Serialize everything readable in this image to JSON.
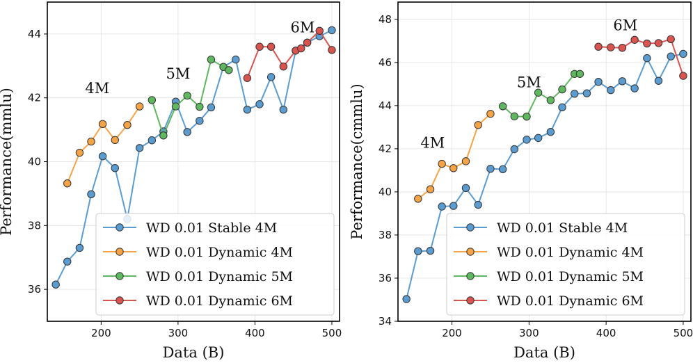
{
  "colors": {
    "stable4m": "#5a9bd0",
    "dyn4m": "#f5a347",
    "dyn5m": "#5fb85f",
    "dyn6m": "#d9534f"
  },
  "chart_data": [
    {
      "type": "line",
      "xlabel": "Data (B)",
      "ylabel": "Performance(mmlu)",
      "xlim": [
        130,
        510
      ],
      "ylim": [
        35.0,
        45.0
      ],
      "xticks": [
        200,
        300,
        400,
        500
      ],
      "yticks": [
        36,
        38,
        40,
        42,
        44
      ],
      "grid": true,
      "legend_position": "lower-right",
      "annotations": [
        {
          "text": "4M",
          "x": 195,
          "y": 42.15
        },
        {
          "text": "5M",
          "x": 300,
          "y": 42.6
        },
        {
          "text": "6M",
          "x": 462,
          "y": 44.05
        }
      ],
      "series": [
        {
          "name": "WD 0.01 Stable 4M",
          "color_key": "stable4m",
          "x": [
            141,
            156,
            172,
            187,
            202,
            218,
            234,
            250,
            266,
            281,
            297,
            312,
            328,
            343,
            359,
            375,
            390,
            406,
            421,
            437,
            453,
            468,
            484,
            500
          ],
          "y": [
            36.15,
            36.87,
            37.3,
            38.98,
            40.17,
            39.8,
            38.2,
            40.43,
            40.67,
            40.95,
            41.88,
            40.93,
            41.28,
            41.7,
            42.97,
            43.2,
            41.63,
            41.8,
            42.65,
            41.63,
            43.48,
            43.73,
            43.93,
            44.12
          ]
        },
        {
          "name": "WD 0.01 Dynamic 4M",
          "color_key": "dyn4m",
          "x": [
            156,
            172,
            187,
            202,
            218,
            234,
            250
          ],
          "y": [
            39.32,
            40.28,
            40.63,
            41.18,
            40.68,
            41.15,
            41.73
          ]
        },
        {
          "name": "WD 0.01 Dynamic 5M",
          "color_key": "dyn5m",
          "x": [
            266,
            281,
            297,
            312,
            328,
            343,
            359,
            366
          ],
          "y": [
            41.93,
            40.82,
            41.73,
            42.07,
            41.72,
            43.2,
            42.97,
            42.87
          ]
        },
        {
          "name": "WD 0.01 Dynamic 6M",
          "color_key": "dyn6m",
          "x": [
            390,
            406,
            421,
            437,
            453,
            460,
            468,
            484,
            500
          ],
          "y": [
            42.62,
            43.6,
            43.6,
            42.98,
            43.48,
            43.55,
            43.73,
            44.1,
            43.5
          ]
        }
      ]
    },
    {
      "type": "line",
      "xlabel": "Data (B)",
      "ylabel": "Performance(cmmlu)",
      "xlim": [
        130,
        510
      ],
      "ylim": [
        34.0,
        48.8
      ],
      "xticks": [
        200,
        300,
        400,
        500
      ],
      "yticks": [
        34,
        36,
        38,
        40,
        42,
        44,
        46,
        48
      ],
      "grid": true,
      "legend_position": "lower-right",
      "annotations": [
        {
          "text": "4M",
          "x": 175,
          "y": 42.05
        },
        {
          "text": "5M",
          "x": 300,
          "y": 44.85
        },
        {
          "text": "6M",
          "x": 425,
          "y": 47.5
        }
      ],
      "series": [
        {
          "name": "WD 0.01 Stable 4M",
          "color_key": "stable4m",
          "x": [
            141,
            156,
            172,
            187,
            202,
            218,
            234,
            250,
            266,
            281,
            297,
            312,
            328,
            343,
            359,
            375,
            390,
            406,
            421,
            437,
            453,
            468,
            484,
            500
          ],
          "y": [
            35.03,
            37.25,
            37.27,
            39.32,
            39.35,
            40.18,
            39.4,
            41.07,
            41.05,
            41.98,
            42.42,
            42.5,
            42.78,
            43.92,
            44.55,
            44.57,
            45.1,
            44.72,
            45.13,
            44.8,
            46.2,
            45.15,
            46.28,
            46.4
          ]
        },
        {
          "name": "WD 0.01 Dynamic 4M",
          "color_key": "dyn4m",
          "x": [
            156,
            172,
            187,
            202,
            218,
            234,
            250
          ],
          "y": [
            39.68,
            40.12,
            41.3,
            41.1,
            41.42,
            43.1,
            43.62
          ]
        },
        {
          "name": "WD 0.01 Dynamic 5M",
          "color_key": "dyn5m",
          "x": [
            266,
            281,
            297,
            312,
            328,
            343,
            359,
            366
          ],
          "y": [
            43.97,
            43.5,
            43.49,
            44.6,
            44.25,
            44.75,
            45.47,
            45.47
          ]
        },
        {
          "name": "WD 0.01 Dynamic 6M",
          "color_key": "dyn6m",
          "x": [
            390,
            406,
            421,
            437,
            453,
            468,
            484,
            500
          ],
          "y": [
            46.73,
            46.7,
            46.68,
            47.05,
            46.88,
            46.9,
            47.08,
            45.38
          ]
        }
      ]
    }
  ]
}
